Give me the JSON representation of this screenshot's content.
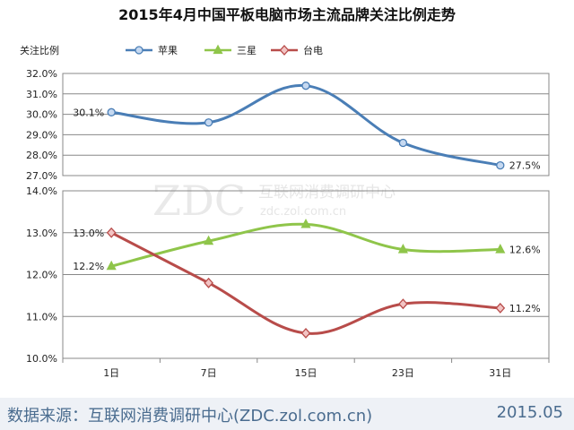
{
  "chart_data": {
    "type": "line",
    "title": "2015年4月中国平板电脑市场主流品牌关注比例走势",
    "ylabel": "关注比例",
    "categories": [
      "1日",
      "7日",
      "15日",
      "23日",
      "31日"
    ],
    "panels": [
      {
        "ylim": [
          27.0,
          32.0
        ],
        "yticks": [
          "27.0%",
          "28.0%",
          "29.0%",
          "30.0%",
          "31.0%",
          "32.0%"
        ],
        "series": [
          {
            "name": "苹果",
            "values": [
              30.1,
              29.6,
              31.4,
              28.6,
              27.5
            ],
            "color": "#4a7eb6",
            "marker": "circle",
            "marker_fill": "#c6d9f1",
            "labels": [
              {
                "index": 0,
                "text": "30.1%"
              },
              {
                "index": 4,
                "text": "27.5%"
              }
            ]
          }
        ]
      },
      {
        "ylim": [
          10.0,
          14.0
        ],
        "yticks": [
          "10.0%",
          "11.0%",
          "12.0%",
          "13.0%",
          "14.0%"
        ],
        "series": [
          {
            "name": "三星",
            "values": [
              12.2,
              12.8,
              13.2,
              12.6,
              12.6
            ],
            "color": "#8fc54a",
            "marker": "triangle",
            "marker_fill": "#8fc54a",
            "labels": [
              {
                "index": 0,
                "text": "12.2%"
              },
              {
                "index": 4,
                "text": "12.6%"
              }
            ]
          },
          {
            "name": "台电",
            "values": [
              13.0,
              11.8,
              10.6,
              11.3,
              11.2
            ],
            "color": "#b84c4a",
            "marker": "diamond",
            "marker_fill": "#f2c4c4",
            "labels": [
              {
                "index": 0,
                "text": "13.0%"
              },
              {
                "index": 4,
                "text": "11.2%"
              }
            ]
          }
        ]
      }
    ],
    "legend": {
      "position": "top"
    },
    "grid": true
  },
  "watermark": {
    "logo": "ZDC",
    "line1": "互联网消费调研中心",
    "line2": "zdc.zol.com.cn"
  },
  "footer": {
    "source": "数据来源：互联网消费调研中心(ZDC.zol.com.cn)",
    "date": "2015.05"
  }
}
